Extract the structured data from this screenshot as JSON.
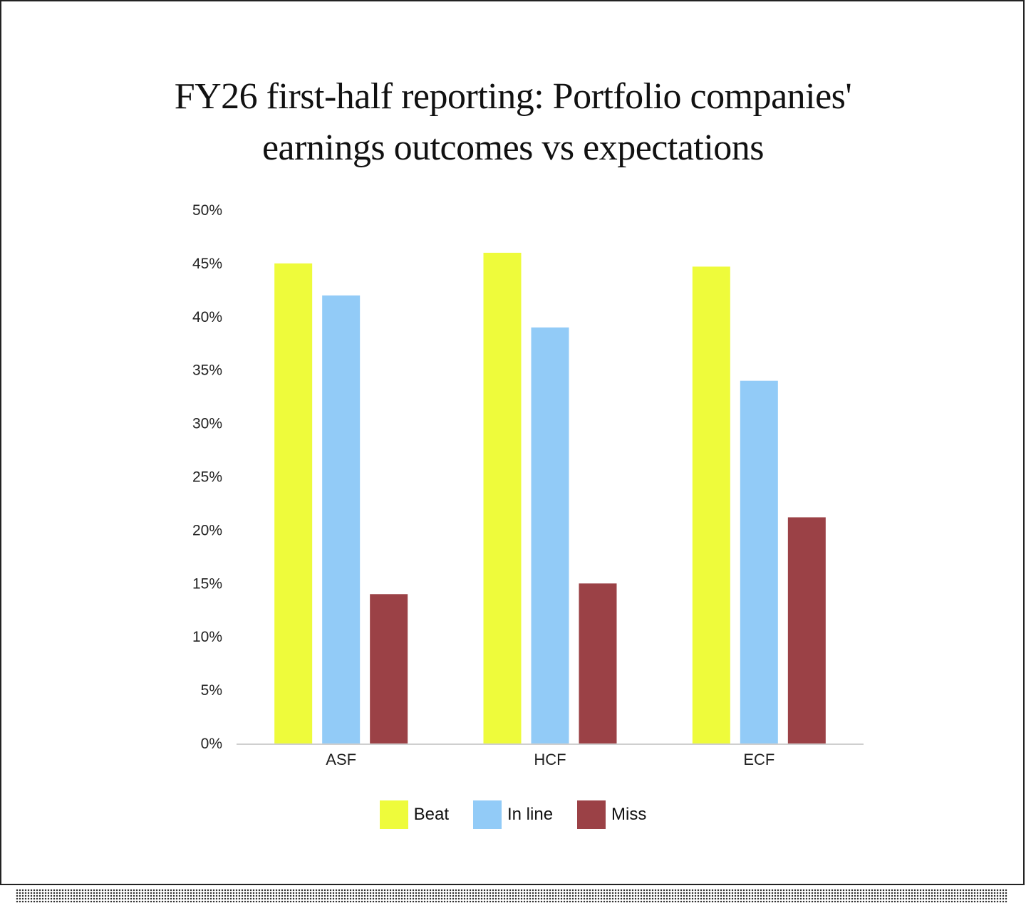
{
  "title_lines": [
    "FY26 first-half reporting: Portfolio companies'",
    "earnings outcomes vs expectations"
  ],
  "chart_data": {
    "type": "bar",
    "title": "FY26 first-half reporting: Portfolio companies' earnings outcomes vs expectations",
    "categories": [
      "ASF",
      "HCF",
      "ECF"
    ],
    "series": [
      {
        "name": "Beat",
        "values": [
          45,
          46,
          44.7
        ],
        "color": "#eefb3b"
      },
      {
        "name": "In line",
        "values": [
          42,
          39,
          34
        ],
        "color": "#92cbf7"
      },
      {
        "name": "Miss",
        "values": [
          14,
          15,
          21.2
        ],
        "color": "#9b4146"
      }
    ],
    "ylim": [
      0,
      50
    ],
    "yticks": [
      "0%",
      "5%",
      "10%",
      "15%",
      "20%",
      "25%",
      "30%",
      "35%",
      "40%",
      "45%",
      "50%"
    ],
    "grid": false,
    "legend_position": "bottom"
  }
}
